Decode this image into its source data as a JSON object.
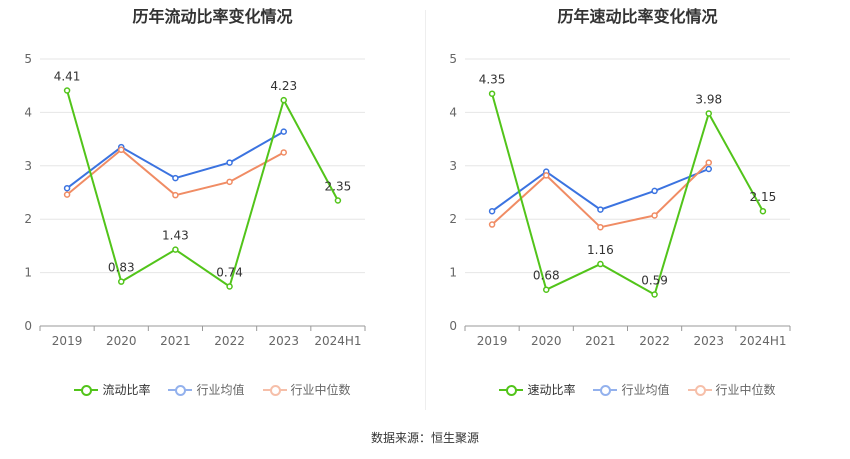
{
  "source": "数据来源：恒生聚源",
  "chart_data": [
    {
      "type": "line",
      "title": "历年流动比率变化情况",
      "categories": [
        "2019",
        "2020",
        "2021",
        "2022",
        "2023",
        "2024H1"
      ],
      "ylim": [
        0,
        5
      ],
      "yticks": [
        "0",
        "1",
        "2",
        "3",
        "4",
        "5"
      ],
      "grid": true,
      "legend_position": "bottom",
      "series": [
        {
          "name": "流动比率",
          "color": "#52c41a",
          "values": [
            4.41,
            0.83,
            1.43,
            0.74,
            4.23,
            2.35
          ],
          "labels": [
            "4.41",
            "0.83",
            "1.43",
            "0.74",
            "4.23",
            "2.35"
          ]
        },
        {
          "name": "行业均值",
          "color": "#3b73e0",
          "values": [
            2.58,
            3.35,
            2.77,
            3.06,
            3.64,
            null
          ]
        },
        {
          "name": "行业中位数",
          "color": "#f08c64",
          "values": [
            2.46,
            3.3,
            2.45,
            2.7,
            3.25,
            null
          ]
        }
      ]
    },
    {
      "type": "line",
      "title": "历年速动比率变化情况",
      "categories": [
        "2019",
        "2020",
        "2021",
        "2022",
        "2023",
        "2024H1"
      ],
      "ylim": [
        0,
        5
      ],
      "yticks": [
        "0",
        "1",
        "2",
        "3",
        "4",
        "5"
      ],
      "grid": true,
      "legend_position": "bottom",
      "series": [
        {
          "name": "速动比率",
          "color": "#52c41a",
          "values": [
            4.35,
            0.68,
            1.16,
            0.59,
            3.98,
            2.15
          ],
          "labels": [
            "4.35",
            "0.68",
            "1.16",
            "0.59",
            "3.98",
            "2.15"
          ]
        },
        {
          "name": "行业均值",
          "color": "#3b73e0",
          "values": [
            2.15,
            2.89,
            2.18,
            2.53,
            2.94,
            null
          ]
        },
        {
          "name": "行业中位数",
          "color": "#f08c64",
          "values": [
            1.9,
            2.82,
            1.85,
            2.07,
            3.06,
            null
          ]
        }
      ]
    }
  ]
}
